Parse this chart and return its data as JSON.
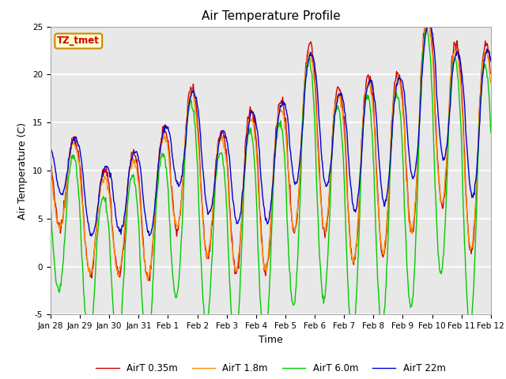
{
  "title": "Air Temperature Profile",
  "xlabel": "Time",
  "ylabel": "Air Temperature (C)",
  "ylim": [
    -5,
    25
  ],
  "xtick_labels": [
    "Jan 28",
    "Jan 29",
    "Jan 30",
    "Jan 31",
    "Feb 1",
    "Feb 2",
    "Feb 3",
    "Feb 4",
    "Feb 5",
    "Feb 6",
    "Feb 7",
    "Feb 8",
    "Feb 9",
    "Feb 10",
    "Feb 11",
    "Feb 12"
  ],
  "ytick_labels": [
    "-5",
    "0",
    "5",
    "10",
    "15",
    "20",
    "25"
  ],
  "ytick_positions": [
    -5,
    0,
    5,
    10,
    15,
    20,
    25
  ],
  "line_colors": [
    "#cc0000",
    "#ff8c00",
    "#00cc00",
    "#0000cc"
  ],
  "line_labels": [
    "AirT 0.35m",
    "AirT 1.8m",
    "AirT 6.0m",
    "AirT 22m"
  ],
  "bg_color": "#e8e8e8",
  "fig_bg_color": "#ffffff",
  "annotation_text": "TZ_tmet",
  "annotation_bg": "#ffffcc",
  "annotation_border": "#cc8800",
  "annotation_text_color": "#cc0000",
  "grid_color": "#ffffff",
  "title_fontsize": 11,
  "label_fontsize": 9,
  "tick_fontsize": 7.5
}
